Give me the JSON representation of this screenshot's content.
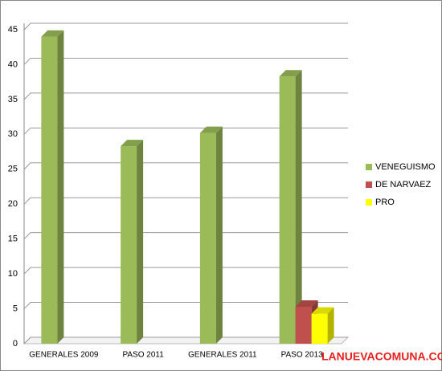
{
  "chart_data": {
    "type": "bar",
    "categories": [
      "GENERALES 2009",
      "PASO 2011",
      "GENERALES 2011",
      "PASO 2013"
    ],
    "series": [
      {
        "name": "VENEGUISMO",
        "color": "#9bbb59",
        "values": [
          44,
          28.3,
          30.2,
          38.3
        ]
      },
      {
        "name": "DE NARVAEZ",
        "color": "#c0504d",
        "values": [
          null,
          null,
          null,
          5.3
        ]
      },
      {
        "name": "PRO",
        "color": "#ffff00",
        "values": [
          null,
          null,
          null,
          4.3
        ]
      }
    ],
    "ylim": [
      0,
      45
    ],
    "yticks": [
      0,
      5,
      10,
      15,
      20,
      25,
      30,
      35,
      40,
      45
    ],
    "grid": true,
    "legend": "right"
  },
  "watermark": "LANUEVACOMUNA.COM"
}
